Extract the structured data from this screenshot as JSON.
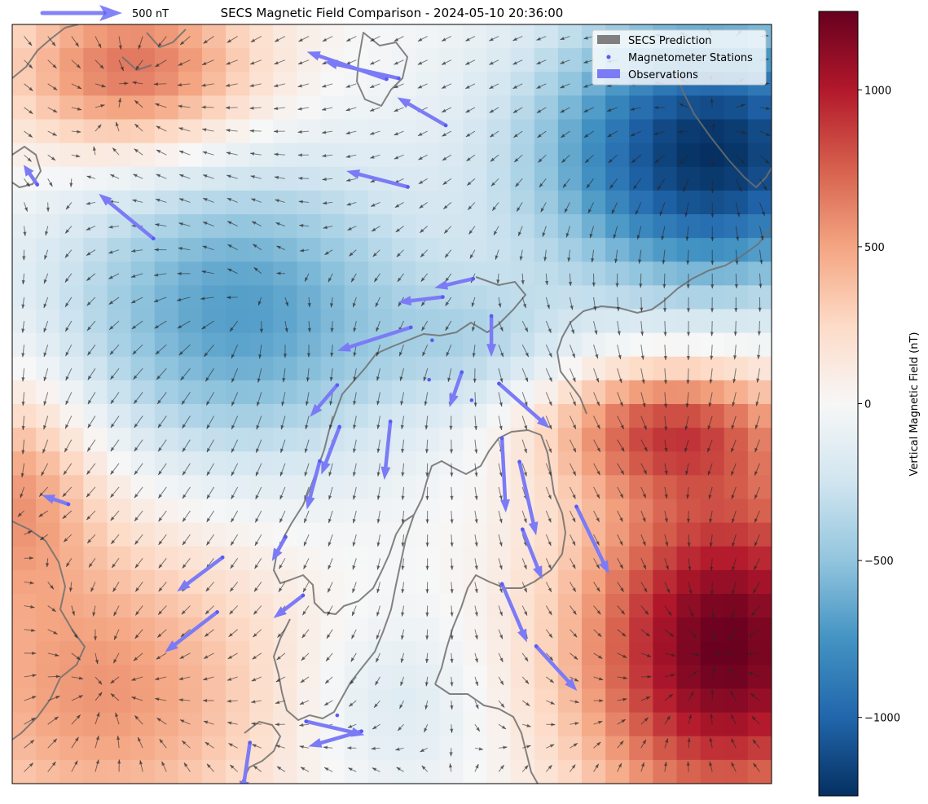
{
  "title": "SECS Magnetic Field Comparison - 2024-05-10 20:36:00",
  "quiverkey": {
    "label": "500 nT",
    "color": "#5a5af5"
  },
  "legend": {
    "placement": "upper-right",
    "items": [
      {
        "label": "SECS Prediction",
        "kind": "patch",
        "color": "#808080"
      },
      {
        "label": "Magnetometer Stations",
        "kind": "point",
        "color": "#5a5af5"
      },
      {
        "label": "Observations",
        "kind": "patch",
        "color": "#7b7bf6"
      }
    ]
  },
  "colorbar": {
    "label": "Vertical Magnetic Field (nT)",
    "colormap": "RdBu_r",
    "vmin": -1250,
    "vmax": 1250,
    "ticks": [
      1000,
      500,
      0,
      -500,
      -1000
    ],
    "tick_labels": [
      "1000",
      "500",
      "0",
      "−500",
      "−1000"
    ]
  },
  "chart_data": {
    "type": "heatmap",
    "title": "SECS Magnetic Field Comparison - 2024-05-10 20:36:00",
    "grid": false,
    "colorbar_label": "Vertical Magnetic Field (nT)",
    "value_range": [
      -1250,
      1250
    ],
    "field_sources": [
      {
        "u": 0.16,
        "v": 0.06,
        "amp": 700,
        "sx": 0.12,
        "sy": 0.08
      },
      {
        "u": 0.92,
        "v": 0.17,
        "amp": -1250,
        "sx": 0.16,
        "sy": 0.13
      },
      {
        "u": 0.3,
        "v": 0.38,
        "amp": -700,
        "sx": 0.17,
        "sy": 0.14
      },
      {
        "u": 0.62,
        "v": 0.42,
        "amp": -250,
        "sx": 0.09,
        "sy": 0.06
      },
      {
        "u": 0.0,
        "v": 0.61,
        "amp": 500,
        "sx": 0.08,
        "sy": 0.1
      },
      {
        "u": 0.12,
        "v": 0.88,
        "amp": 550,
        "sx": 0.17,
        "sy": 0.15
      },
      {
        "u": 0.94,
        "v": 0.82,
        "amp": 1250,
        "sx": 0.14,
        "sy": 0.17
      },
      {
        "u": 0.86,
        "v": 0.53,
        "amp": 650,
        "sx": 0.11,
        "sy": 0.06
      },
      {
        "u": 0.5,
        "v": 0.9,
        "amp": -200,
        "sx": 0.09,
        "sy": 0.09
      }
    ],
    "observations": [
      {
        "u": 0.033,
        "v": 0.211,
        "du": -0.018,
        "dv": -0.026
      },
      {
        "u": 0.186,
        "v": 0.282,
        "du": -0.072,
        "dv": -0.059
      },
      {
        "u": 0.509,
        "v": 0.071,
        "du": -0.098,
        "dv": -0.022
      },
      {
        "u": 0.493,
        "v": 0.072,
        "du": -0.105,
        "dv": -0.036
      },
      {
        "u": 0.571,
        "v": 0.133,
        "du": -0.064,
        "dv": -0.037
      },
      {
        "u": 0.521,
        "v": 0.214,
        "du": -0.081,
        "dv": -0.021
      },
      {
        "u": 0.607,
        "v": 0.335,
        "du": -0.051,
        "dv": 0.012
      },
      {
        "u": 0.567,
        "v": 0.359,
        "du": -0.059,
        "dv": 0.007
      },
      {
        "u": 0.631,
        "v": 0.384,
        "du": 0.0,
        "dv": 0.054
      },
      {
        "u": 0.525,
        "v": 0.399,
        "du": -0.097,
        "dv": 0.031
      },
      {
        "u": 0.428,
        "v": 0.475,
        "du": -0.036,
        "dv": 0.042
      },
      {
        "u": 0.592,
        "v": 0.458,
        "du": -0.016,
        "dv": 0.046
      },
      {
        "u": 0.641,
        "v": 0.473,
        "du": 0.067,
        "dv": 0.059
      },
      {
        "u": 0.498,
        "v": 0.523,
        "du": -0.008,
        "dv": 0.077
      },
      {
        "u": 0.431,
        "v": 0.53,
        "du": -0.024,
        "dv": 0.063
      },
      {
        "u": 0.405,
        "v": 0.575,
        "du": -0.017,
        "dv": 0.064
      },
      {
        "u": 0.645,
        "v": 0.545,
        "du": 0.005,
        "dv": 0.098
      },
      {
        "u": 0.668,
        "v": 0.576,
        "du": 0.022,
        "dv": 0.097
      },
      {
        "u": 0.672,
        "v": 0.665,
        "du": 0.026,
        "dv": 0.066
      },
      {
        "u": 0.743,
        "v": 0.635,
        "du": 0.043,
        "dv": 0.089
      },
      {
        "u": 0.074,
        "v": 0.632,
        "du": -0.035,
        "dv": -0.012
      },
      {
        "u": 0.36,
        "v": 0.675,
        "du": -0.018,
        "dv": 0.032
      },
      {
        "u": 0.277,
        "v": 0.702,
        "du": -0.06,
        "dv": 0.045
      },
      {
        "u": 0.383,
        "v": 0.752,
        "du": -0.039,
        "dv": 0.03
      },
      {
        "u": 0.27,
        "v": 0.774,
        "du": -0.069,
        "dv": 0.053
      },
      {
        "u": 0.645,
        "v": 0.737,
        "du": 0.033,
        "dv": 0.077
      },
      {
        "u": 0.69,
        "v": 0.819,
        "du": 0.054,
        "dv": 0.059
      },
      {
        "u": 0.313,
        "v": 0.946,
        "du": -0.01,
        "dv": 0.068
      },
      {
        "u": 0.46,
        "v": 0.931,
        "du": -0.07,
        "dv": 0.02
      },
      {
        "u": 0.387,
        "v": 0.918,
        "du": 0.077,
        "dv": 0.018
      }
    ],
    "stations_only": [
      {
        "u": 0.553,
        "v": 0.416
      },
      {
        "u": 0.549,
        "v": 0.468
      },
      {
        "u": 0.605,
        "v": 0.495
      },
      {
        "u": 0.428,
        "v": 0.91
      }
    ]
  }
}
